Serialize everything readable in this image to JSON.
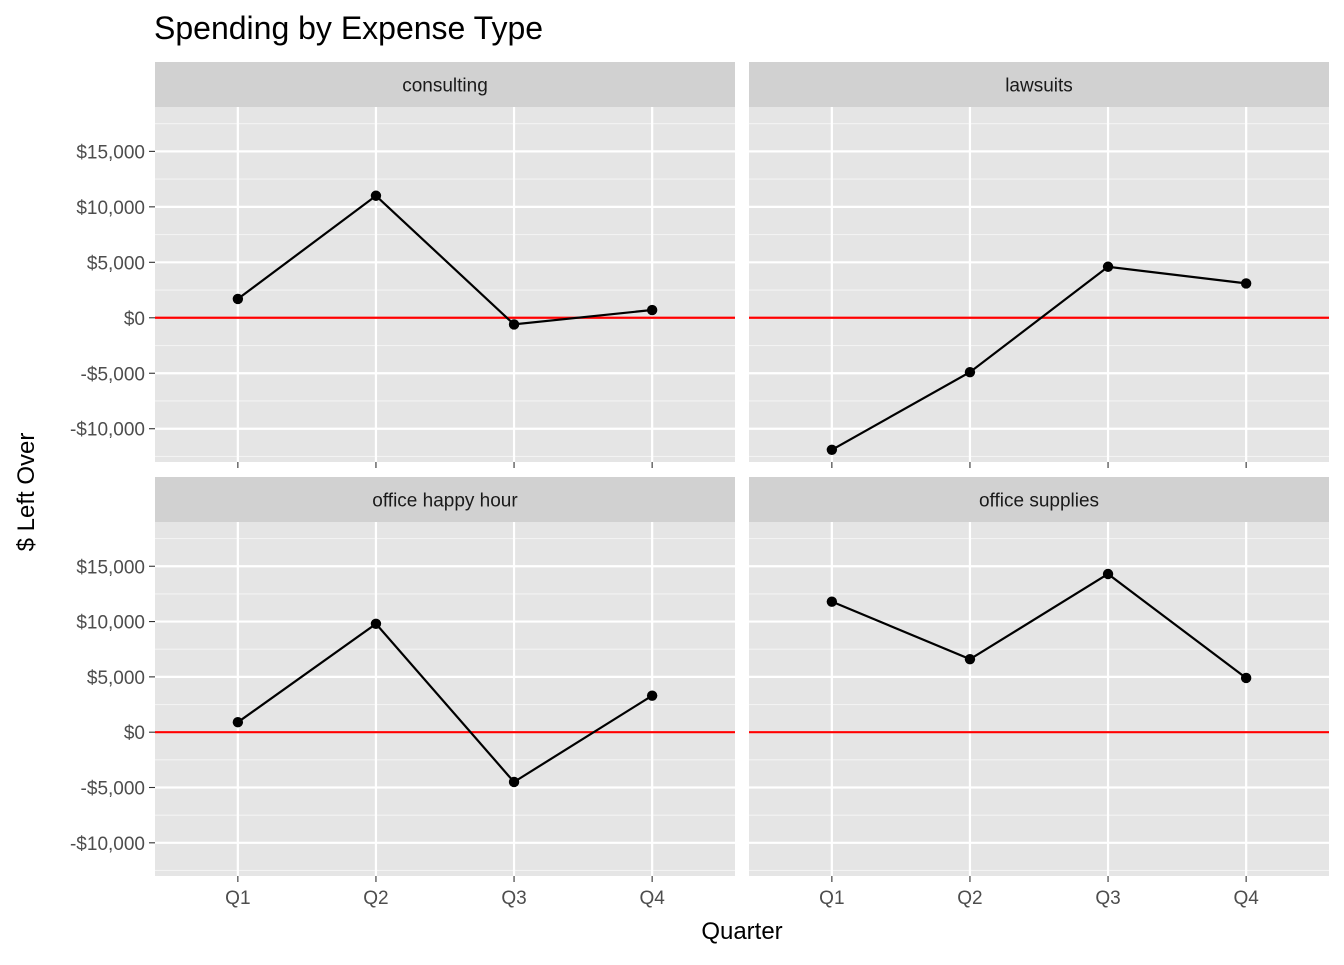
{
  "chart_data": {
    "type": "line",
    "title": "Spending by Expense Type",
    "xlabel": "Quarter",
    "ylabel": "$ Left Over",
    "categories": [
      "Q1",
      "Q2",
      "Q3",
      "Q4"
    ],
    "ylim": [
      -13000,
      19000
    ],
    "y_ticks": [
      -10000,
      -5000,
      0,
      5000,
      10000,
      15000
    ],
    "y_tick_labels": [
      "-$10,000",
      "-$5,000",
      "$0",
      "$5,000",
      "$10,000",
      "$15,000"
    ],
    "reference_line": {
      "value": 0,
      "color": "#ff0000"
    },
    "grid": true,
    "facets": [
      {
        "name": "consulting",
        "values": [
          1700,
          11000,
          -600,
          700
        ]
      },
      {
        "name": "lawsuits",
        "values": [
          -11900,
          -4900,
          4600,
          3100
        ]
      },
      {
        "name": "office happy hour",
        "values": [
          900,
          9800,
          -4500,
          3300
        ]
      },
      {
        "name": "office supplies",
        "values": [
          11800,
          6600,
          14300,
          4900
        ]
      }
    ]
  }
}
